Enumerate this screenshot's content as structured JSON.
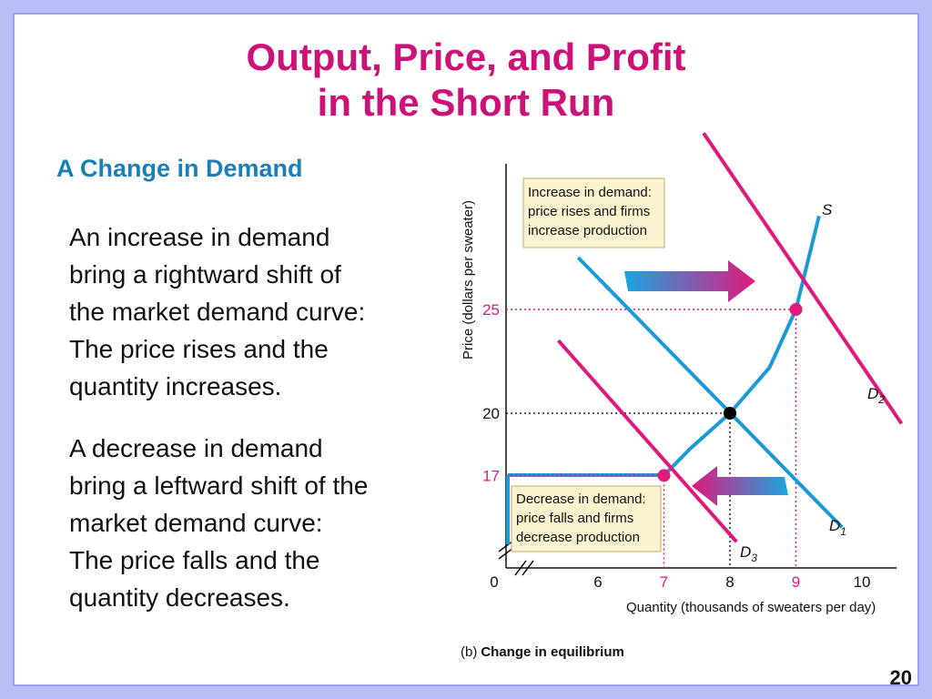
{
  "slide": {
    "title_line1": "Output, Price, and Profit",
    "title_line2": "in the Short Run",
    "subheading": "A Change in Demand",
    "paragraph1": [
      "An increase in demand",
      "bring a rightward shift of",
      "the market demand curve:",
      "The price rises and the",
      "quantity increases."
    ],
    "paragraph2": [
      "A decrease in demand",
      "bring a leftward shift of the",
      "market demand curve:",
      "The price falls and the",
      "quantity decreases."
    ],
    "page_number": "20"
  },
  "chart_data": {
    "type": "line",
    "ylabel": "Price (dollars per sweater)",
    "xlabel": "Quantity (thousands of sweaters per day)",
    "caption_prefix": "(b)",
    "caption": "Change in equilibrium",
    "x_ticks": [
      "0",
      "6",
      "7",
      "8",
      "9",
      "10"
    ],
    "y_ticks": [
      "17",
      "20",
      "25"
    ],
    "highlight_ticks": [
      "7",
      "9",
      "17",
      "25"
    ],
    "series": [
      {
        "name": "S",
        "points": [
          [
            7,
            17
          ],
          [
            7.4,
            18.3
          ],
          [
            8,
            20
          ],
          [
            8.6,
            22.2
          ],
          [
            9,
            25
          ],
          [
            9.35,
            29.5
          ]
        ],
        "color": "#1a9ad6"
      },
      {
        "name": "D1",
        "points": [
          [
            5.7,
            27.5
          ],
          [
            8,
            20
          ],
          [
            9.7,
            14.5
          ]
        ],
        "color": "#1a9ad6"
      },
      {
        "name": "D2",
        "points": [
          [
            7.6,
            33.5
          ],
          [
            9,
            25
          ],
          [
            10.6,
            19.5
          ]
        ],
        "color": "#e0197d"
      },
      {
        "name": "D3",
        "points": [
          [
            5.4,
            23.5
          ],
          [
            7,
            17
          ],
          [
            8.1,
            13.8
          ]
        ],
        "color": "#e0197d"
      }
    ],
    "labels": {
      "S": "S",
      "D1_base": "D",
      "D1_sub": "1",
      "D2_base": "D",
      "D2_sub": "2",
      "D3_base": "D",
      "D3_sub": "3"
    },
    "equilibria": [
      {
        "x": 7,
        "y": 17,
        "color": "#e0197d"
      },
      {
        "x": 8,
        "y": 20,
        "color": "#000000"
      },
      {
        "x": 9,
        "y": 25,
        "color": "#e0197d"
      }
    ],
    "annotations": {
      "increase": [
        "Increase in demand:",
        "price rises and firms",
        "increase production"
      ],
      "decrease": [
        "Decrease in demand:",
        "price falls and firms",
        "decrease production"
      ]
    },
    "arrows": [
      {
        "direction": "right",
        "meaning": "increase"
      },
      {
        "direction": "left",
        "meaning": "decrease"
      }
    ]
  }
}
